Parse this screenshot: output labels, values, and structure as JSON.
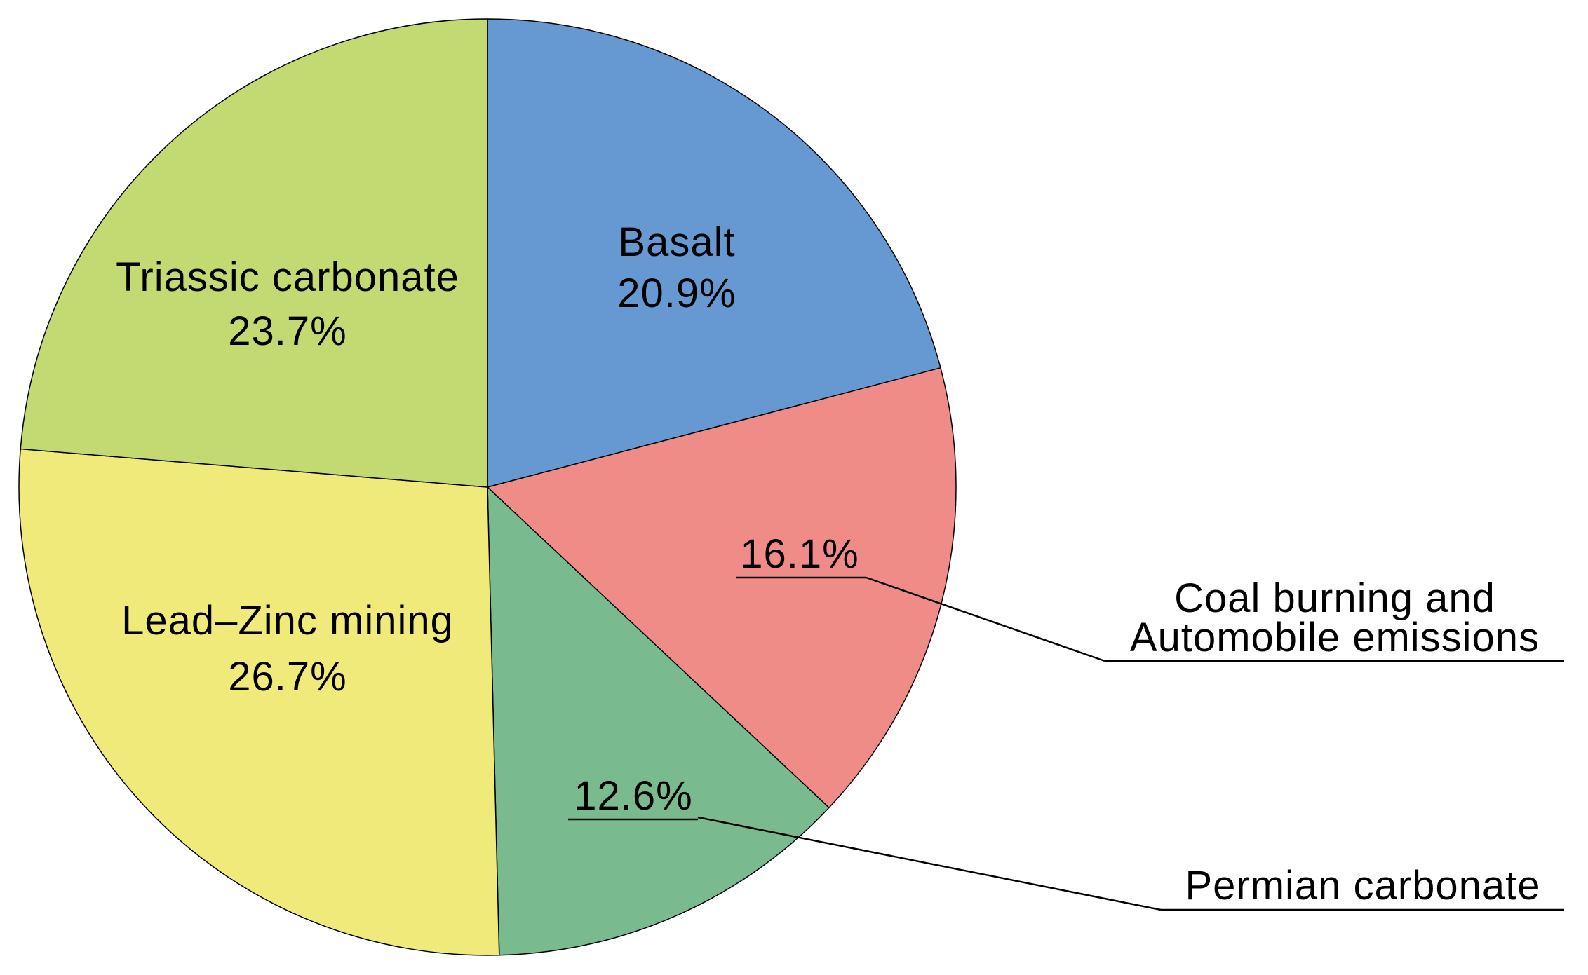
{
  "chart_data": {
    "type": "pie",
    "title": "",
    "slices": [
      {
        "label": "Basalt",
        "value": 20.9,
        "value_text": "20.9%",
        "color": "#6699D1",
        "label_placement": "inside"
      },
      {
        "label": "Coal burning and Automobile emissions",
        "label_lines": [
          "Coal burning and",
          "Automobile emissions"
        ],
        "value": 16.1,
        "value_text": "16.1%",
        "color": "#F08C88",
        "label_placement": "outside-callout"
      },
      {
        "label": "Permian carbonate",
        "label_lines": [
          "Permian carbonate"
        ],
        "value": 12.6,
        "value_text": "12.6%",
        "color": "#7ABA8F",
        "label_placement": "outside-callout"
      },
      {
        "label": "Lead–Zinc mining",
        "value": 26.7,
        "value_text": "26.7%",
        "color": "#EFEA7A",
        "label_placement": "inside"
      },
      {
        "label": "Triassic carbonate",
        "value": 23.7,
        "value_text": "23.7%",
        "color": "#C3D972",
        "label_placement": "inside"
      }
    ],
    "start_angle_deg": 0,
    "direction": "clockwise",
    "legend": "none"
  }
}
